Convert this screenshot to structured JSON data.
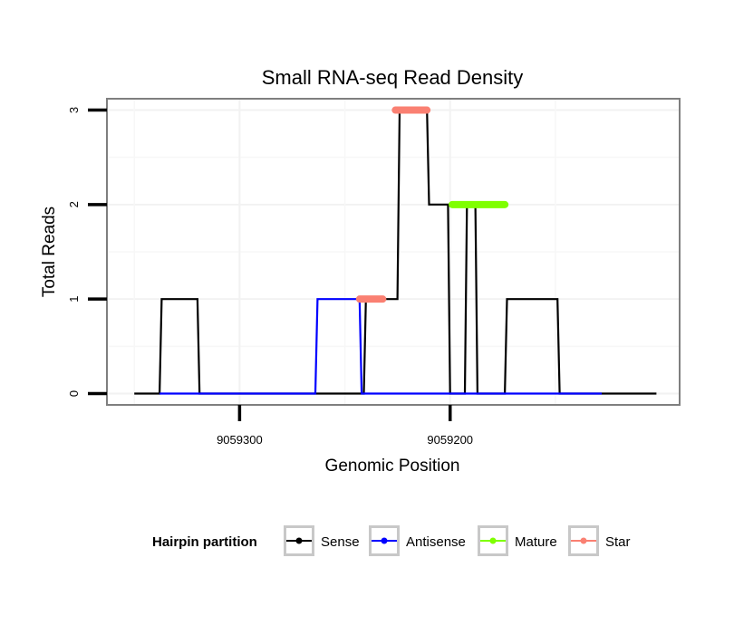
{
  "chart_data": {
    "type": "line",
    "title": "Small RNA-seq Read Density",
    "xlabel": "Genomic Position",
    "ylabel": "Total Reads",
    "x_reversed": true,
    "xlim": [
      9059363,
      9059091
    ],
    "ylim": [
      -0.12,
      3.12
    ],
    "x_ticks": [
      9059300,
      9059200
    ],
    "x_tick_labels": [
      "9059300",
      "9059200"
    ],
    "y_ticks": [
      0,
      1,
      2,
      3
    ],
    "y_tick_labels": [
      "0",
      "1",
      "2",
      "3"
    ],
    "grid": true,
    "legend": {
      "title": "Hairpin partition",
      "position": "bottom",
      "entries": [
        {
          "label": "Sense",
          "color": "#000000"
        },
        {
          "label": "Antisense",
          "color": "#0000ff"
        },
        {
          "label": "Mature",
          "color": "#7fff00"
        },
        {
          "label": "Star",
          "color": "#fa8072"
        }
      ]
    },
    "series": [
      {
        "name": "Sense",
        "color": "#000000",
        "style": "line",
        "x": [
          9059350,
          9059338,
          9059337,
          9059320,
          9059319,
          9059241,
          9059240,
          9059225,
          9059224,
          9059211,
          9059210,
          9059201,
          9059200,
          9059193,
          9059192,
          9059188,
          9059187,
          9059174,
          9059173,
          9059149,
          9059148,
          9059129,
          9059128,
          9059102
        ],
        "y": [
          0,
          0,
          1,
          1,
          0,
          0,
          1,
          1,
          3,
          3,
          2,
          2,
          0,
          0,
          2,
          2,
          0,
          0,
          1,
          1,
          0,
          0,
          0,
          0
        ]
      },
      {
        "name": "Antisense",
        "color": "#0000ff",
        "style": "line",
        "x": [
          9059338,
          9059264,
          9059263,
          9059243,
          9059242,
          9059128
        ],
        "y": [
          0,
          0,
          1,
          1,
          0,
          0
        ]
      },
      {
        "name": "Mature",
        "color": "#7fff00",
        "style": "segment",
        "x": [
          9059199,
          9059174
        ],
        "y": [
          2,
          2
        ]
      },
      {
        "name": "Star",
        "color": "#fa8072",
        "style": "segment",
        "segments": [
          {
            "x": [
              9059243,
              9059232
            ],
            "y": [
              1,
              1
            ]
          },
          {
            "x": [
              9059226,
              9059211
            ],
            "y": [
              3,
              3
            ]
          }
        ]
      }
    ]
  }
}
